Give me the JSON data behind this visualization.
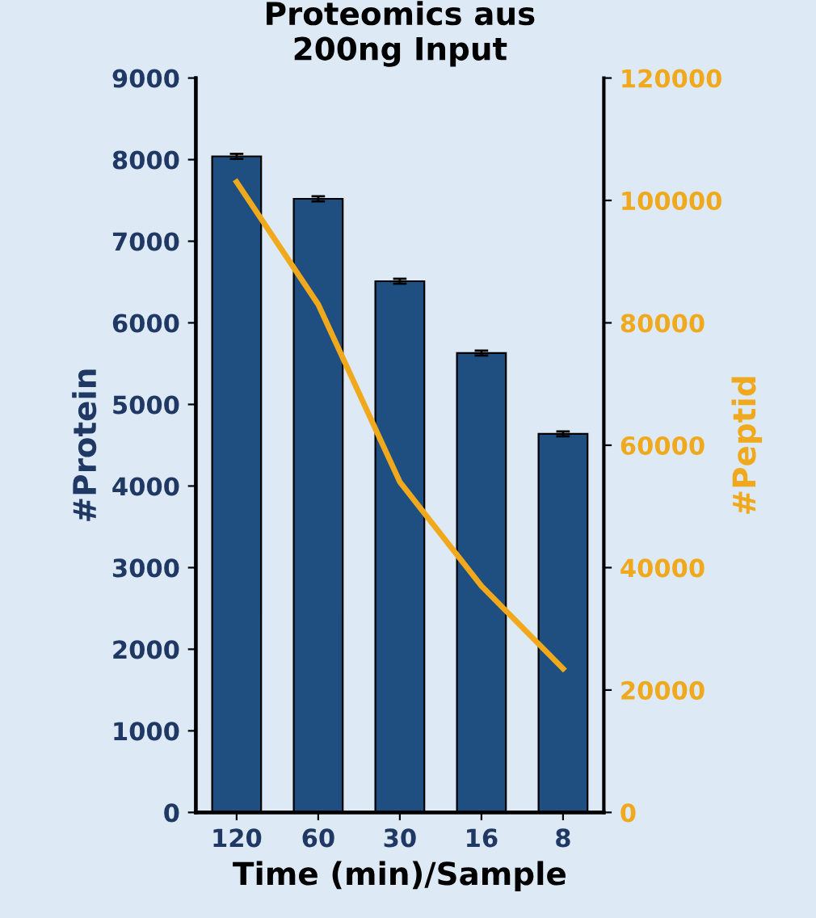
{
  "chart_data": {
    "type": "bar",
    "title": "Proteomics aus\n200ng Input",
    "xlabel": "Time (min)/Sample",
    "ylabel": "#Protein",
    "y2label": "#Peptid",
    "categories": [
      "120",
      "60",
      "30",
      "16",
      "8"
    ],
    "series": [
      {
        "color": "#1f4e80",
        "values": [
          8040,
          7520,
          6510,
          5630,
          4640
        ],
        "errors": [
          30,
          30,
          30,
          30,
          30
        ]
      },
      {
        "type": "line",
        "axis": "y2",
        "color": "#f0a81c",
        "values": [
          103000,
          83000,
          54000,
          37000,
          23500
        ]
      }
    ],
    "ylim": [
      0,
      9000
    ],
    "yticks": [
      0,
      1000,
      2000,
      3000,
      4000,
      5000,
      6000,
      7000,
      8000,
      9000
    ],
    "y2lim": [
      0,
      120000
    ],
    "y2ticks": [
      0,
      20000,
      40000,
      60000,
      80000,
      100000,
      120000
    ],
    "grid": false,
    "legend": false
  }
}
